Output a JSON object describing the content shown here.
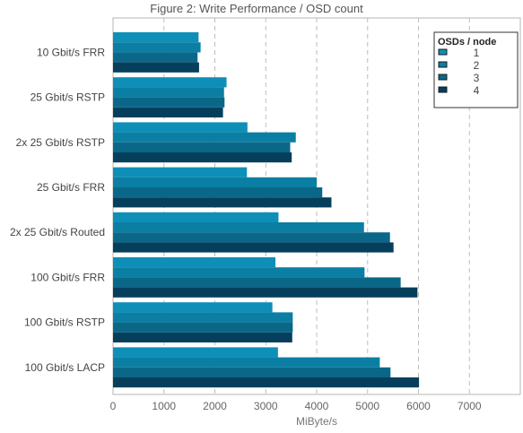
{
  "chart_data": {
    "type": "bar",
    "orientation": "horizontal",
    "title": "Figure 2: Write Performance / OSD count",
    "xlabel": "MiByte/s",
    "ylabel": "",
    "xlim": [
      0,
      8000
    ],
    "xticks": [
      0,
      1000,
      2000,
      3000,
      4000,
      5000,
      6000,
      7000
    ],
    "grid": "vertical-dashed",
    "legend_title": "OSDs / node",
    "legend_position": "top-right",
    "categories": [
      "10 Gbit/s FRR",
      "25 Gbit/s RSTP",
      "2x 25 Gbit/s RSTP",
      "25 Gbit/s FRR",
      "2x 25 Gbit/s Routed",
      "100 Gbit/s FRR",
      "100 Gbit/s RSTP",
      "100 Gbit/s LACP"
    ],
    "series": [
      {
        "name": "1",
        "color": "#0e8fb8",
        "values": [
          1680,
          2230,
          2640,
          2630,
          3250,
          3190,
          3130,
          3240
        ]
      },
      {
        "name": "2",
        "color": "#0b7ea3",
        "values": [
          1720,
          2180,
          3590,
          4000,
          4930,
          4940,
          3530,
          5240
        ]
      },
      {
        "name": "3",
        "color": "#0a6788",
        "values": [
          1660,
          2190,
          3480,
          4110,
          5440,
          5650,
          3530,
          5450
        ]
      },
      {
        "name": "4",
        "color": "#063f5c",
        "values": [
          1690,
          2160,
          3510,
          4290,
          5510,
          5980,
          3520,
          6010
        ]
      }
    ]
  }
}
